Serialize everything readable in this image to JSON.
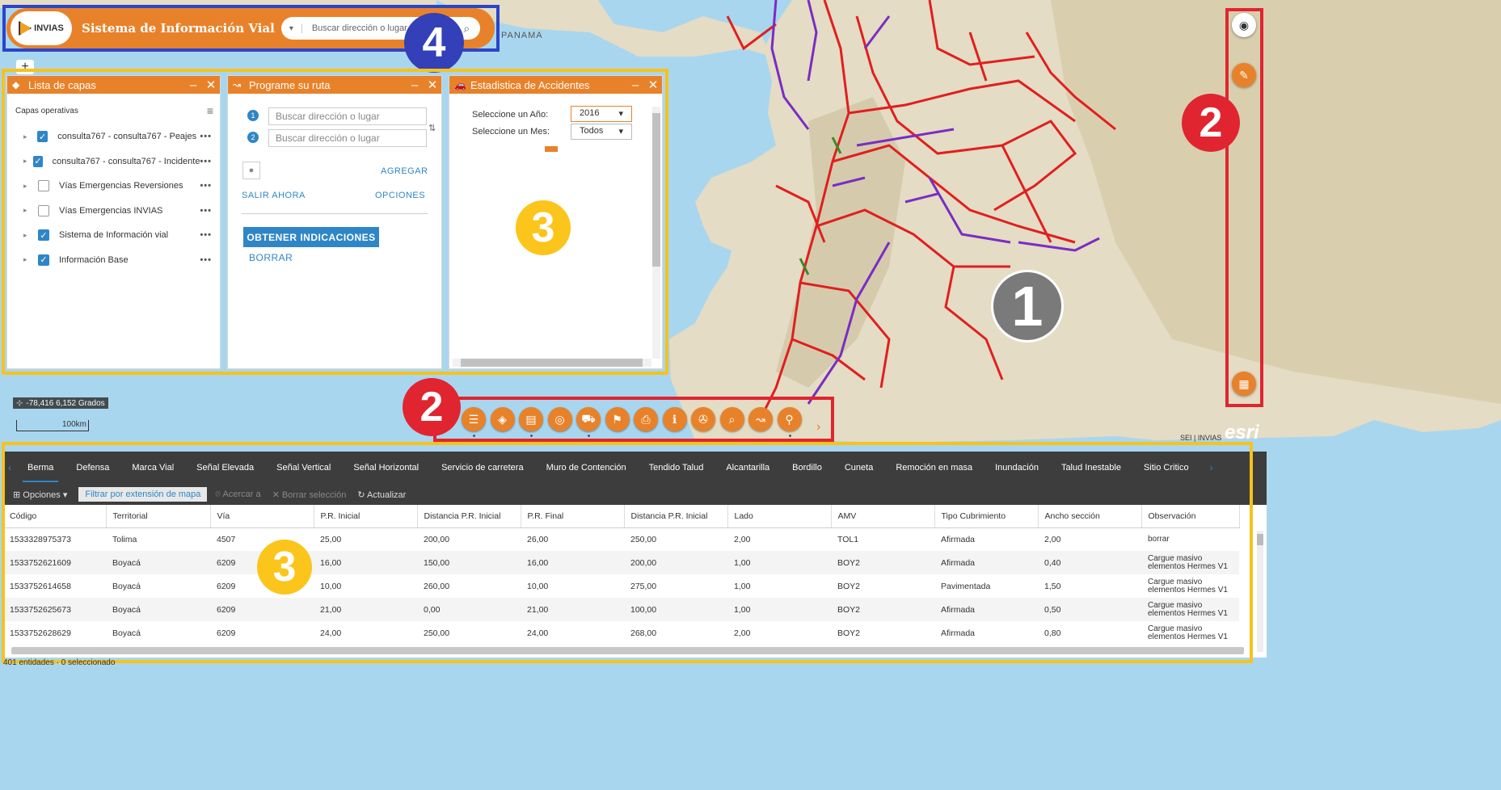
{
  "header": {
    "logo_text": "INVIAS",
    "title": "Sistema de Información Vial",
    "search_placeholder": "Buscar dirección o lugar"
  },
  "map": {
    "label_panama": "PANAMA",
    "coordinates": "-78,416 6,152 Grados",
    "scale_label": "100km",
    "attribution": "SEI | INVIAS",
    "esri_label": "esri",
    "zoom_in": "+"
  },
  "annotations": {
    "one": "1",
    "two_right": "2",
    "two_toolbar": "2",
    "three_panel": "3",
    "three_table": "3",
    "four": "4"
  },
  "layers_panel": {
    "title": "Lista de capas",
    "section": "Capas operativas",
    "items": [
      {
        "label": "consulta767 - consulta767 - Peajes",
        "checked": true
      },
      {
        "label": "consulta767 - consulta767 - Incidente",
        "checked": true
      },
      {
        "label": "Vías Emergencias Reversiones",
        "checked": false
      },
      {
        "label": "Vías Emergencias INVIAS",
        "checked": false
      },
      {
        "label": "Sistema de Información vial",
        "checked": true
      },
      {
        "label": "Información Base",
        "checked": true
      }
    ]
  },
  "route_panel": {
    "title": "Programe su ruta",
    "stop1_placeholder": "Buscar dirección o lugar",
    "stop2_placeholder": "Buscar dirección o lugar",
    "add": "AGREGAR",
    "depart": "SALIR AHORA",
    "options": "OPCIONES",
    "get_directions": "OBTENER INDICACIONES",
    "clear": "BORRAR"
  },
  "stats_panel": {
    "title": "Estadistica de Accidentes",
    "year_label": "Seleccione un Año:",
    "year_value": "2016",
    "month_label": "Seleccione un Mes:",
    "month_value": "Todos"
  },
  "attribute_table": {
    "tabs": [
      "Berma",
      "Defensa",
      "Marca Vial",
      "Señal Elevada",
      "Señal Vertical",
      "Señal Horizontal",
      "Servicio de carretera",
      "Muro de Contención",
      "Tendido Talud",
      "Alcantarilla",
      "Bordillo",
      "Cuneta",
      "Remoción en masa",
      "Inundación",
      "Talud Inestable",
      "Sitio Critico"
    ],
    "toolbar": {
      "options": "Opciones",
      "filter": "Filtrar por extensión de mapa",
      "zoom": "Acercar a",
      "clear_selection": "Borrar selección",
      "refresh": "Actualizar"
    },
    "columns": [
      "Código",
      "Territorial",
      "Vía",
      "P.R. Inicial",
      "Distancia P.R. Inicial",
      "P.R. Final",
      "Distancia P.R. Inicial",
      "Lado",
      "AMV",
      "Tipo Cubrimiento",
      "Ancho sección",
      "Observación"
    ],
    "rows": [
      [
        "1533328975373",
        "Tolima",
        "4507",
        "25,00",
        "200,00",
        "26,00",
        "250,00",
        "2,00",
        "TOL1",
        "Afirmada",
        "2,00",
        "borrar"
      ],
      [
        "1533752621609",
        "Boyacá",
        "6209",
        "16,00",
        "150,00",
        "16,00",
        "200,00",
        "1,00",
        "BOY2",
        "Afirmada",
        "0,40",
        "Cargue masivo elementos Hermes V1"
      ],
      [
        "1533752614658",
        "Boyacá",
        "6209",
        "10,00",
        "260,00",
        "10,00",
        "275,00",
        "1,00",
        "BOY2",
        "Pavimentada",
        "1,50",
        "Cargue masivo elementos Hermes V1"
      ],
      [
        "1533752625673",
        "Boyacá",
        "6209",
        "21,00",
        "0,00",
        "21,00",
        "100,00",
        "1,00",
        "BOY2",
        "Afirmada",
        "0,50",
        "Cargue masivo elementos Hermes V1"
      ],
      [
        "1533752628629",
        "Boyacá",
        "6209",
        "24,00",
        "250,00",
        "24,00",
        "268,00",
        "2,00",
        "BOY2",
        "Afirmada",
        "0,80",
        "Cargue masivo elementos Hermes V1"
      ]
    ],
    "status": "401 entidades · 0 seleccionado"
  },
  "toolbar_icons": [
    "list-icon",
    "layers-icon",
    "table-icon",
    "location-icon",
    "car-icon",
    "bookmark-icon",
    "print-icon",
    "info-icon",
    "film-icon",
    "search-zoom-icon",
    "route-icon",
    "user-pin-icon"
  ],
  "colors": {
    "accent": "#e8822a",
    "link": "#2f86c7",
    "annotation_red": "#e02530",
    "annotation_yellow": "#f7c21b",
    "annotation_blue": "#2b45c9"
  }
}
